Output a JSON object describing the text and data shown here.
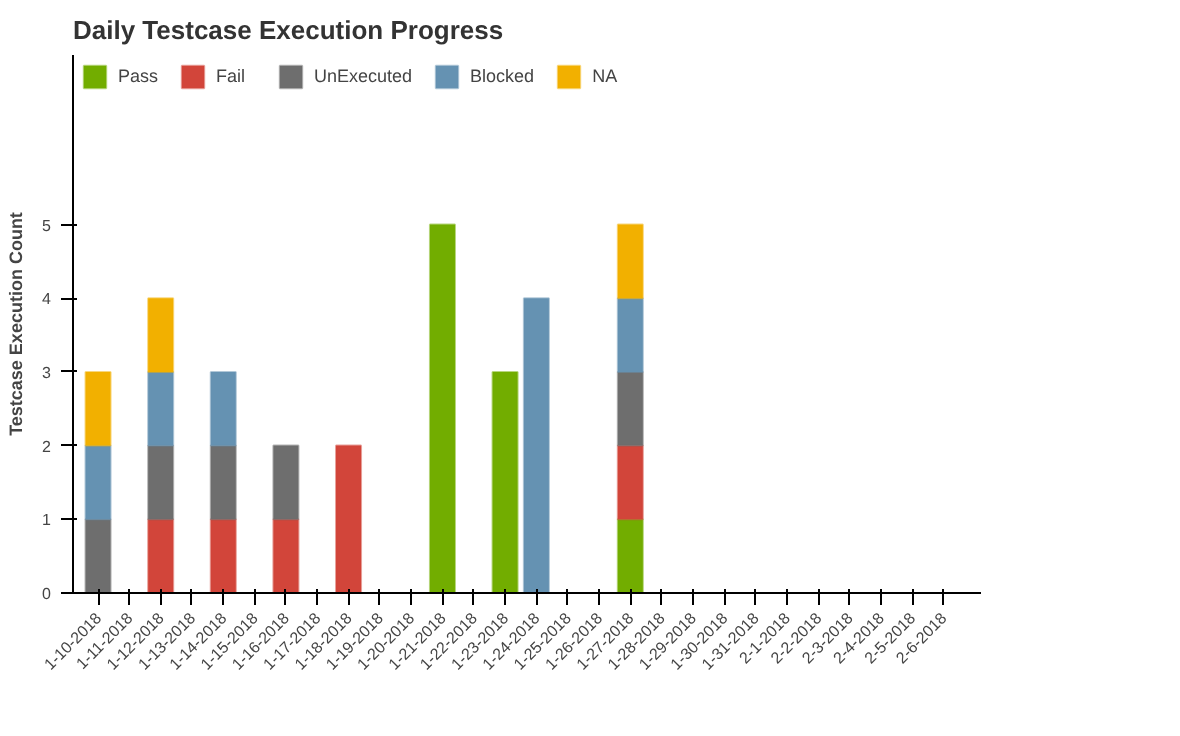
{
  "chart_data": {
    "type": "bar",
    "title": "Daily Testcase Execution Progress",
    "ylabel": "Testcase Execution Count",
    "categories": [
      "1-10-2018",
      "1-11-2018",
      "1-12-2018",
      "1-13-2018",
      "1-14-2018",
      "1-15-2018",
      "1-16-2018",
      "1-17-2018",
      "1-18-2018",
      "1-19-2018",
      "1-20-2018",
      "1-21-2018",
      "1-22-2018",
      "1-23-2018",
      "1-24-2018",
      "1-25-2018",
      "1-26-2018",
      "1-27-2018",
      "1-28-2018",
      "1-29-2018",
      "1-30-2018",
      "1-31-2018",
      "2-1-2018",
      "2-2-2018",
      "2-3-2018",
      "2-4-2018",
      "2-5-2018",
      "2-6-2018"
    ],
    "stacked": true,
    "series": [
      {
        "name": "Pass",
        "color": "#72ad00",
        "values": [
          0,
          0,
          0,
          0,
          0,
          0,
          0,
          0,
          0,
          0,
          0,
          5,
          0,
          3,
          0,
          0,
          0,
          1,
          0,
          0,
          0,
          0,
          0,
          0,
          0,
          0,
          0,
          0
        ]
      },
      {
        "name": "Fail",
        "color": "#d2453a",
        "values": [
          0,
          0,
          1,
          0,
          1,
          0,
          1,
          0,
          2,
          0,
          0,
          0,
          0,
          0,
          0,
          0,
          0,
          1,
          0,
          0,
          0,
          0,
          0,
          0,
          0,
          0,
          0,
          0
        ]
      },
      {
        "name": "UnExecuted",
        "color": "#6e6e6e",
        "values": [
          1,
          0,
          1,
          0,
          1,
          0,
          1,
          0,
          0,
          0,
          0,
          0,
          0,
          0,
          0,
          0,
          0,
          1,
          0,
          0,
          0,
          0,
          0,
          0,
          0,
          0,
          0,
          0
        ]
      },
      {
        "name": "Blocked",
        "color": "#6592b2",
        "values": [
          1,
          0,
          1,
          0,
          1,
          0,
          0,
          0,
          0,
          0,
          0,
          0,
          0,
          0,
          4,
          0,
          0,
          1,
          0,
          0,
          0,
          0,
          0,
          0,
          0,
          0,
          0,
          0
        ]
      },
      {
        "name": "NA",
        "color": "#f2b000",
        "values": [
          1,
          0,
          1,
          0,
          0,
          0,
          0,
          0,
          0,
          0,
          0,
          0,
          0,
          0,
          0,
          0,
          0,
          1,
          0,
          0,
          0,
          0,
          0,
          0,
          0,
          0,
          0,
          0
        ]
      }
    ],
    "ylim": [
      0,
      7.3
    ],
    "yticks": [
      0,
      1,
      2,
      3,
      4,
      5
    ],
    "grid": false,
    "legend": "top left"
  }
}
